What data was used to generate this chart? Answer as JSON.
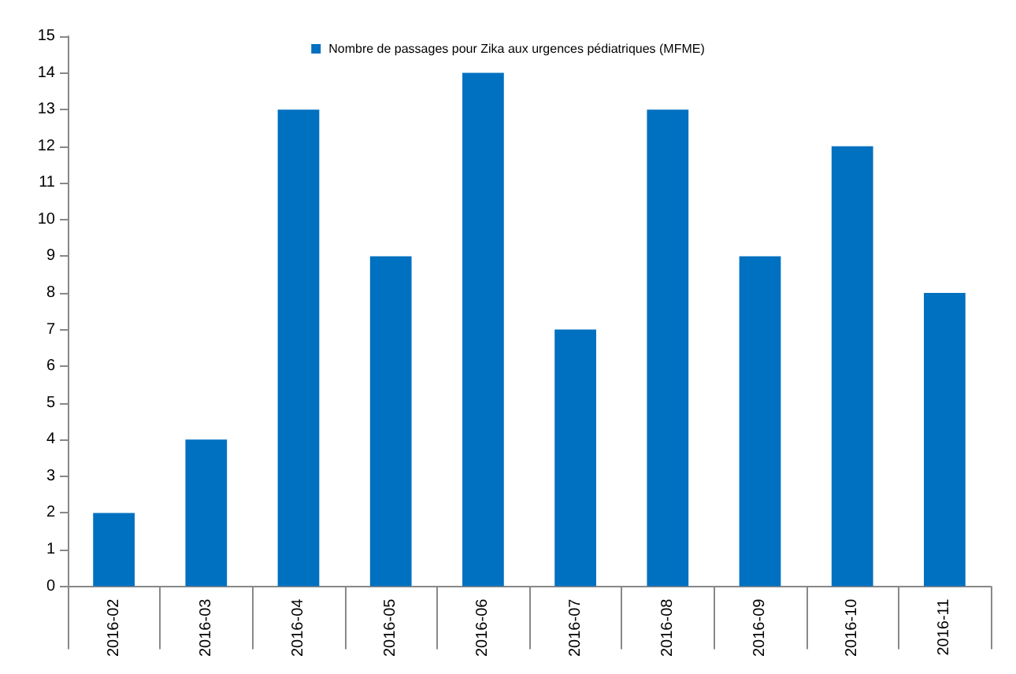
{
  "chart_data": {
    "type": "bar",
    "categories": [
      "2016-02",
      "2016-03",
      "2016-04",
      "2016-05",
      "2016-06",
      "2016-07",
      "2016-08",
      "2016-09",
      "2016-10",
      "2016-11"
    ],
    "series": [
      {
        "name": "Nombre de passages pour Zika aux urgences pédiatriques (MFME)",
        "color": "#0070c0",
        "values": [
          2,
          4,
          13,
          9,
          14,
          7,
          13,
          9,
          12,
          8
        ]
      }
    ],
    "ylim": [
      0,
      15
    ],
    "yticks": [
      0,
      1,
      2,
      3,
      4,
      5,
      6,
      7,
      8,
      9,
      10,
      11,
      12,
      13,
      14,
      15
    ],
    "grid": false,
    "legend": "top"
  }
}
